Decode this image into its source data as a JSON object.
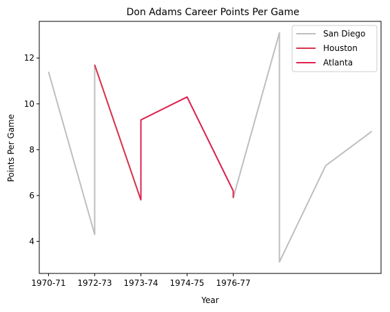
{
  "chart_data": {
    "type": "line",
    "title": "Don Adams  Career Points Per Game",
    "xlabel": "Year",
    "ylabel": "Points Per Game",
    "x_tick_labels": [
      "1970-71",
      "1972-73",
      "1973-74",
      "1974-75",
      "1976-77"
    ],
    "x_tick_positions": [
      0,
      2,
      4,
      6,
      8
    ],
    "xlim": [
      -0.4,
      14.4
    ],
    "ylim": [
      2.6,
      13.6
    ],
    "y_ticks": [
      4,
      6,
      8,
      10,
      12
    ],
    "grid": false,
    "legend_position": "top-right",
    "series": [
      {
        "name": "San Diego",
        "color": "#bebebe",
        "points": [
          [
            0,
            11.4
          ],
          [
            2,
            4.3
          ],
          [
            2,
            11.7
          ],
          [
            4,
            5.8
          ],
          [
            4,
            9.3
          ],
          [
            6,
            10.3
          ],
          [
            8,
            6.2
          ],
          [
            8,
            5.9
          ],
          [
            10,
            13.1
          ],
          [
            10,
            3.1
          ],
          [
            12,
            7.3
          ],
          [
            14,
            8.8
          ]
        ]
      },
      {
        "name": "Houston",
        "color": "#d9334a",
        "points": [
          [
            2,
            11.7
          ],
          [
            4,
            5.8
          ]
        ]
      },
      {
        "name": "Atlanta",
        "color": "#e0204f",
        "points": [
          [
            4,
            5.8
          ],
          [
            4,
            9.3
          ],
          [
            6,
            10.3
          ],
          [
            8,
            6.2
          ],
          [
            8,
            5.9
          ]
        ]
      }
    ]
  }
}
